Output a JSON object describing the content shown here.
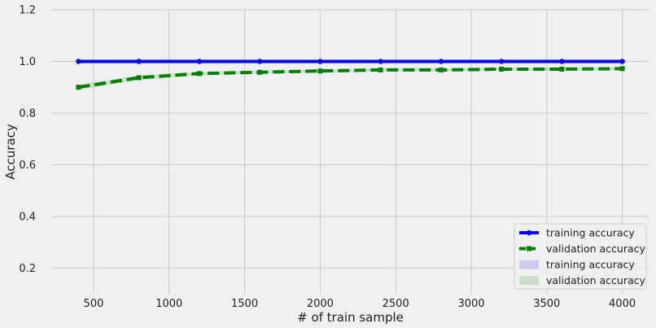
{
  "chart_data": {
    "type": "line",
    "title": "",
    "xlabel": "# of train sample",
    "ylabel": "Accuracy",
    "xlim": [
      220,
      4180
    ],
    "ylim": [
      0.1,
      1.2
    ],
    "xticks": [
      500,
      1000,
      1500,
      2000,
      2500,
      3000,
      3500,
      4000
    ],
    "yticks": [
      0.2,
      0.4,
      0.6,
      0.8,
      1.0,
      1.2
    ],
    "grid": true,
    "legend_position": "lower-right",
    "x": [
      400,
      800,
      1200,
      1600,
      2000,
      2400,
      2800,
      3200,
      3600,
      4000
    ],
    "series": [
      {
        "name": "training accuracy",
        "values": [
          1.0,
          1.0,
          1.0,
          1.0,
          1.0,
          1.0,
          1.0,
          1.0,
          1.0,
          1.0
        ],
        "color": "#0000ff",
        "marker": "circle",
        "style": "solid"
      },
      {
        "name": "validation accuracy",
        "values": [
          0.9,
          0.937,
          0.953,
          0.958,
          0.963,
          0.967,
          0.967,
          0.97,
          0.97,
          0.972
        ],
        "color": "#008000",
        "marker": "square",
        "style": "dashed"
      }
    ],
    "bands": [
      {
        "name": "training accuracy",
        "lower": [
          0.999,
          0.999,
          0.999,
          0.999,
          0.999,
          0.999,
          0.999,
          0.999,
          0.999,
          0.999
        ],
        "upper": [
          1.0,
          1.0,
          1.0,
          1.0,
          1.0,
          1.0,
          1.0,
          1.0,
          1.0,
          1.0
        ],
        "color": "#0000ff",
        "opacity": 0.15
      },
      {
        "name": "validation accuracy",
        "lower": [
          0.89,
          0.928,
          0.946,
          0.952,
          0.957,
          0.961,
          0.961,
          0.964,
          0.964,
          0.966
        ],
        "upper": [
          0.91,
          0.946,
          0.96,
          0.964,
          0.969,
          0.973,
          0.973,
          0.976,
          0.976,
          0.978
        ],
        "color": "#008000",
        "opacity": 0.15
      }
    ]
  }
}
